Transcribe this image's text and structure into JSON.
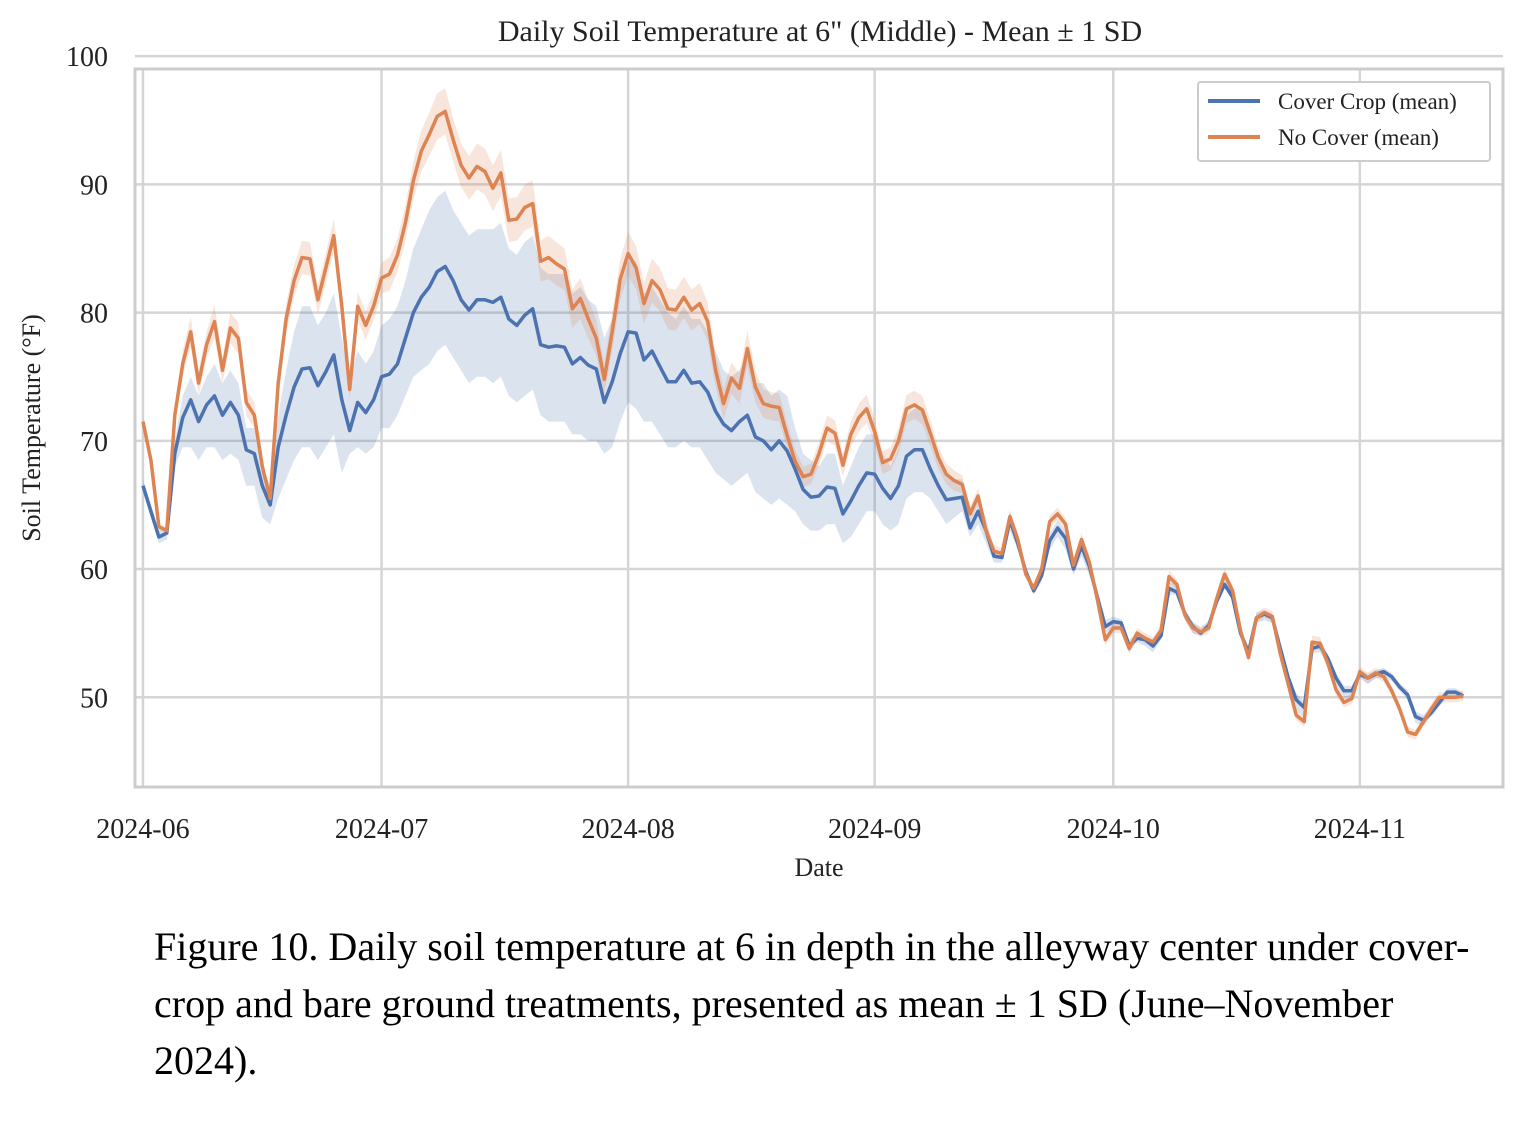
{
  "chart_data": {
    "type": "line",
    "title": "Daily Soil Temperature at 6\" (Middle) - Mean ± 1 SD",
    "xlabel": "Date",
    "ylabel": "Soil Temperature (°F)",
    "x_range": [
      "2024-05-31",
      "2024-11-19"
    ],
    "ylim": [
      43,
      99
    ],
    "x_ticks": [
      "2024-06",
      "2024-07",
      "2024-08",
      "2024-09",
      "2024-10",
      "2024-11"
    ],
    "x_tick_dates": [
      "2024-06-01",
      "2024-07-01",
      "2024-08-01",
      "2024-09-01",
      "2024-10-01",
      "2024-11-01"
    ],
    "y_ticks": [
      50,
      60,
      70,
      80,
      90,
      100
    ],
    "grid": true,
    "legend_position": "top-right",
    "start_date": "2024-06-01",
    "series": [
      {
        "name": "Cover Crop (mean)",
        "color": "#4c72b0",
        "values": [
          66.5,
          64.5,
          62.5,
          62.8,
          69.0,
          71.8,
          73.2,
          71.5,
          72.8,
          73.5,
          72.0,
          73.0,
          72.0,
          69.3,
          69.0,
          66.5,
          65.0,
          69.5,
          72.0,
          74.2,
          75.6,
          75.7,
          74.3,
          75.4,
          76.7,
          73.2,
          70.8,
          73.0,
          72.2,
          73.2,
          75.0,
          75.2,
          76.0,
          78.0,
          80.0,
          81.2,
          82.0,
          83.2,
          83.6,
          82.5,
          81.0,
          80.2,
          81.0,
          81.0,
          80.8,
          81.2,
          79.5,
          79.0,
          79.8,
          80.3,
          77.5,
          77.3,
          77.4,
          77.3,
          76.0,
          76.5,
          75.9,
          75.6,
          73.0,
          74.6,
          76.8,
          78.5,
          78.4,
          76.3,
          77.0,
          75.8,
          74.6,
          74.6,
          75.5,
          74.5,
          74.6,
          73.8,
          72.3,
          71.3,
          70.8,
          71.5,
          72.0,
          70.3,
          70.0,
          69.3,
          70.0,
          69.2,
          67.8,
          66.2,
          65.6,
          65.7,
          66.4,
          66.3,
          64.3,
          65.3,
          66.5,
          67.5,
          67.4,
          66.3,
          65.5,
          66.5,
          68.8,
          69.3,
          69.3,
          67.8,
          66.5,
          65.4,
          65.5,
          65.6,
          63.2,
          64.5,
          63.0,
          61.0,
          60.9,
          63.8,
          62.0,
          59.8,
          58.3,
          59.5,
          62.2,
          63.2,
          62.4,
          60.0,
          61.8,
          60.2,
          57.8,
          55.5,
          55.9,
          55.8,
          54.0,
          54.6,
          54.5,
          54.0,
          54.8,
          58.5,
          58.2,
          56.5,
          55.5,
          55.0,
          55.6,
          57.5,
          58.8,
          57.8,
          55.0,
          53.5,
          56.2,
          56.5,
          56.2,
          53.8,
          51.5,
          49.8,
          49.2,
          53.8,
          54.0,
          53.0,
          51.5,
          50.5,
          50.5,
          51.8,
          51.5,
          51.8,
          52.0,
          51.6,
          50.8,
          50.2,
          48.5,
          48.2,
          48.8,
          49.6,
          50.4,
          50.4,
          50.1
        ],
        "band_lower": [
          66.0,
          64.0,
          62.0,
          62.3,
          68.0,
          69.5,
          69.5,
          68.5,
          69.5,
          69.5,
          68.5,
          69.0,
          68.5,
          66.5,
          66.5,
          64.0,
          63.5,
          65.5,
          67.0,
          68.5,
          69.5,
          69.5,
          68.5,
          69.5,
          70.5,
          67.5,
          69.0,
          69.5,
          69.0,
          69.5,
          71.0,
          71.0,
          72.0,
          73.5,
          75.0,
          75.5,
          76.0,
          77.0,
          77.5,
          76.5,
          75.5,
          74.5,
          75.0,
          75.0,
          74.5,
          75.0,
          73.5,
          73.0,
          73.5,
          74.0,
          72.0,
          71.5,
          71.5,
          71.5,
          70.5,
          70.5,
          70.0,
          70.0,
          69.0,
          69.5,
          71.5,
          73.0,
          72.5,
          71.5,
          71.5,
          70.5,
          69.5,
          69.5,
          70.0,
          69.5,
          69.5,
          68.5,
          67.5,
          67.0,
          66.5,
          67.0,
          67.5,
          66.0,
          65.5,
          65.0,
          65.5,
          65.0,
          64.5,
          63.5,
          63.0,
          63.0,
          63.5,
          63.5,
          62.0,
          62.5,
          63.5,
          64.5,
          64.5,
          63.5,
          63.0,
          63.5,
          65.5,
          66.0,
          66.0,
          65.5,
          64.5,
          63.5,
          64.0,
          64.5,
          62.5,
          63.5,
          62.0,
          60.5,
          60.5,
          63.0,
          61.5,
          59.5,
          58.0,
          59.0,
          61.5,
          62.5,
          61.5,
          59.5,
          61.0,
          59.5,
          57.5,
          55.0,
          55.5,
          55.5,
          53.5,
          54.3,
          54.0,
          53.5,
          54.5,
          58.0,
          58.0,
          56.0,
          55.0,
          54.8,
          55.2,
          57.0,
          58.5,
          57.5,
          54.8,
          53.0,
          55.8,
          56.0,
          55.8,
          53.5,
          51.0,
          49.0,
          48.5,
          53.5,
          53.5,
          52.5,
          51.0,
          50.0,
          50.0,
          51.5,
          51.0,
          51.5,
          51.5,
          51.3,
          50.5,
          49.8,
          48.0,
          47.8,
          48.5,
          49.3,
          50.0,
          50.1,
          49.8
        ],
        "band_upper": [
          67.0,
          65.0,
          63.0,
          63.3,
          70.0,
          73.5,
          75.0,
          73.5,
          75.0,
          76.0,
          74.5,
          75.5,
          74.5,
          71.0,
          71.0,
          68.0,
          66.5,
          72.0,
          75.5,
          78.5,
          80.5,
          80.5,
          79.0,
          80.0,
          81.5,
          78.0,
          75.0,
          77.0,
          76.0,
          77.0,
          79.0,
          79.5,
          80.5,
          82.5,
          85.0,
          86.5,
          88.0,
          89.0,
          89.5,
          88.0,
          87.0,
          86.0,
          86.5,
          86.5,
          86.5,
          87.0,
          85.0,
          84.5,
          85.5,
          86.0,
          83.5,
          83.0,
          83.0,
          83.0,
          81.5,
          82.0,
          81.0,
          80.5,
          78.0,
          79.5,
          82.0,
          84.0,
          84.0,
          81.5,
          82.0,
          81.0,
          80.0,
          79.5,
          80.5,
          79.5,
          79.5,
          78.5,
          77.0,
          75.5,
          75.0,
          75.5,
          76.5,
          74.5,
          74.5,
          73.5,
          74.0,
          73.5,
          71.0,
          69.0,
          68.5,
          68.0,
          69.0,
          69.0,
          66.5,
          68.0,
          69.5,
          70.5,
          70.5,
          69.0,
          68.0,
          69.5,
          72.0,
          72.5,
          72.5,
          70.0,
          68.5,
          67.5,
          67.0,
          67.0,
          64.0,
          65.5,
          64.0,
          61.5,
          61.3,
          64.5,
          62.5,
          60.0,
          58.6,
          60.0,
          62.8,
          63.8,
          63.0,
          60.5,
          62.5,
          60.8,
          58.2,
          56.0,
          56.3,
          56.1,
          54.5,
          55.0,
          54.8,
          54.5,
          55.2,
          59.0,
          58.8,
          56.9,
          55.9,
          55.4,
          56.0,
          57.9,
          59.2,
          58.2,
          55.4,
          54.0,
          56.6,
          56.8,
          56.5,
          54.2,
          51.9,
          50.3,
          49.7,
          54.2,
          54.4,
          53.4,
          51.9,
          50.9,
          50.9,
          52.1,
          51.8,
          52.1,
          52.3,
          51.9,
          51.1,
          50.6,
          48.9,
          48.6,
          49.2,
          49.9,
          50.7,
          50.7,
          50.4
        ]
      },
      {
        "name": "No Cover (mean)",
        "color": "#dd8452",
        "values": [
          71.5,
          68.5,
          63.3,
          63.0,
          72.0,
          76.0,
          78.5,
          74.5,
          77.5,
          79.3,
          75.5,
          78.8,
          78.0,
          73.0,
          72.0,
          68.0,
          65.5,
          74.5,
          79.5,
          82.5,
          84.3,
          84.2,
          81.0,
          83.5,
          86.0,
          80.5,
          74.0,
          80.5,
          79.0,
          80.5,
          82.7,
          83.0,
          84.5,
          87.0,
          90.3,
          92.6,
          93.9,
          95.3,
          95.7,
          93.5,
          91.5,
          90.5,
          91.4,
          91.0,
          89.7,
          90.9,
          87.2,
          87.3,
          88.2,
          88.5,
          84.0,
          84.3,
          83.8,
          83.4,
          80.3,
          81.1,
          79.5,
          78.0,
          74.8,
          78.5,
          82.6,
          84.6,
          83.5,
          80.7,
          82.5,
          81.8,
          80.3,
          80.2,
          81.2,
          80.2,
          80.7,
          79.3,
          75.5,
          72.9,
          74.9,
          74.1,
          77.2,
          74.2,
          72.9,
          72.7,
          72.6,
          70.4,
          68.4,
          67.2,
          67.4,
          69.0,
          71.0,
          70.6,
          68.1,
          70.5,
          71.8,
          72.5,
          70.7,
          68.3,
          68.6,
          70.0,
          72.5,
          72.8,
          72.4,
          70.6,
          68.7,
          67.4,
          66.9,
          66.6,
          64.3,
          65.7,
          63.0,
          61.4,
          61.2,
          64.1,
          62.3,
          59.6,
          58.5,
          60.0,
          63.7,
          64.3,
          63.5,
          60.3,
          62.3,
          60.5,
          57.6,
          54.5,
          55.4,
          55.4,
          53.8,
          55.0,
          54.6,
          54.3,
          55.2,
          59.4,
          58.8,
          56.4,
          55.4,
          55.1,
          55.4,
          57.7,
          59.6,
          58.3,
          55.2,
          53.1,
          56.2,
          56.6,
          56.3,
          53.4,
          51.0,
          48.6,
          48.1,
          54.3,
          54.2,
          52.6,
          50.6,
          49.6,
          49.9,
          52.0,
          51.5,
          51.9,
          51.6,
          50.5,
          49.1,
          47.3,
          47.1,
          48.1,
          49.1,
          50.0,
          50.0,
          50.0,
          50.1
        ],
        "band_lower": [
          71.0,
          68.0,
          63.0,
          62.8,
          71.3,
          75.0,
          77.3,
          73.5,
          76.5,
          78.0,
          74.5,
          77.6,
          76.8,
          72.0,
          71.0,
          67.3,
          65.0,
          73.5,
          78.3,
          81.3,
          83.0,
          82.9,
          79.9,
          82.3,
          84.7,
          79.4,
          73.2,
          79.4,
          77.9,
          79.4,
          81.5,
          81.7,
          83.2,
          85.6,
          88.8,
          91.0,
          92.2,
          93.5,
          93.9,
          91.8,
          89.8,
          88.8,
          89.6,
          89.2,
          87.9,
          89.1,
          85.5,
          85.6,
          86.4,
          86.7,
          82.4,
          82.6,
          82.1,
          81.8,
          78.8,
          79.5,
          78.0,
          76.6,
          73.6,
          77.0,
          81.0,
          82.9,
          81.8,
          79.1,
          80.8,
          80.1,
          78.7,
          78.6,
          79.6,
          78.6,
          79.1,
          77.8,
          74.2,
          71.7,
          73.7,
          72.9,
          75.8,
          73.0,
          71.8,
          71.6,
          71.5,
          69.4,
          67.5,
          66.4,
          66.6,
          68.1,
          70.0,
          69.6,
          67.2,
          69.5,
          70.7,
          71.4,
          69.7,
          67.4,
          67.7,
          69.0,
          71.4,
          71.7,
          71.3,
          69.6,
          67.8,
          66.6,
          66.1,
          65.9,
          63.7,
          65.1,
          62.5,
          60.9,
          60.8,
          63.6,
          61.8,
          59.2,
          58.1,
          59.6,
          63.2,
          63.8,
          63.0,
          59.9,
          61.8,
          60.0,
          57.2,
          54.1,
          55.0,
          55.0,
          53.4,
          54.6,
          54.2,
          53.9,
          54.8,
          58.9,
          58.4,
          56.0,
          55.0,
          54.7,
          55.0,
          57.2,
          59.1,
          57.9,
          54.8,
          52.7,
          55.8,
          56.2,
          55.9,
          53.0,
          50.6,
          48.2,
          47.7,
          53.8,
          53.7,
          52.2,
          50.2,
          49.2,
          49.5,
          51.6,
          51.1,
          51.5,
          51.2,
          50.1,
          48.7,
          46.9,
          46.7,
          47.7,
          48.7,
          49.6,
          49.6,
          49.6,
          49.7
        ],
        "band_upper": [
          72.0,
          69.0,
          63.6,
          63.2,
          72.7,
          77.0,
          79.7,
          75.5,
          78.5,
          80.6,
          76.5,
          80.0,
          79.2,
          74.0,
          73.0,
          68.7,
          66.0,
          75.5,
          80.7,
          83.7,
          85.6,
          85.5,
          82.1,
          84.7,
          87.3,
          81.6,
          74.8,
          81.6,
          80.1,
          81.6,
          83.9,
          84.3,
          85.8,
          88.4,
          91.8,
          94.2,
          95.6,
          97.1,
          97.5,
          95.2,
          93.2,
          92.2,
          93.2,
          92.8,
          91.5,
          92.7,
          88.9,
          89.0,
          90.0,
          90.3,
          85.6,
          86.0,
          85.5,
          85.0,
          81.8,
          82.7,
          81.0,
          79.4,
          76.0,
          80.0,
          84.2,
          86.3,
          85.2,
          82.3,
          84.2,
          83.5,
          81.9,
          81.8,
          82.8,
          81.8,
          82.3,
          80.8,
          76.8,
          74.1,
          76.1,
          75.3,
          78.6,
          75.4,
          74.0,
          73.8,
          73.7,
          71.4,
          69.3,
          68.0,
          68.2,
          69.9,
          72.0,
          71.6,
          69.0,
          71.5,
          72.9,
          73.6,
          71.7,
          69.2,
          69.5,
          71.0,
          73.6,
          73.9,
          73.5,
          71.6,
          69.6,
          68.2,
          67.7,
          67.3,
          64.9,
          66.3,
          63.5,
          61.9,
          61.6,
          64.6,
          62.8,
          60.0,
          58.9,
          60.4,
          64.2,
          64.8,
          64.0,
          60.7,
          62.8,
          61.0,
          58.0,
          54.9,
          55.8,
          55.8,
          54.2,
          55.4,
          55.0,
          54.7,
          55.6,
          59.9,
          59.2,
          56.8,
          55.8,
          55.5,
          55.8,
          58.2,
          60.1,
          58.7,
          55.6,
          53.5,
          56.6,
          57.0,
          56.7,
          53.8,
          51.4,
          49.0,
          48.5,
          54.8,
          54.7,
          53.0,
          51.0,
          50.0,
          50.3,
          52.4,
          51.9,
          52.3,
          52.0,
          50.9,
          49.5,
          47.7,
          47.5,
          48.5,
          49.5,
          50.4,
          50.4,
          50.4,
          50.5
        ]
      }
    ]
  },
  "caption": "Figure 10. Daily soil temperature at 6 in depth in the alleyway center under cover-crop and bare ground treatments, presented as mean ± 1 SD (June–November 2024)."
}
